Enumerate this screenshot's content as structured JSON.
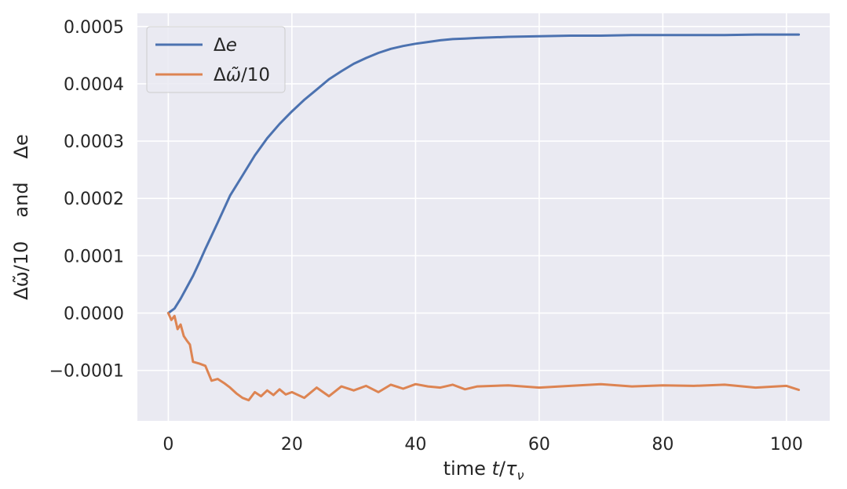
{
  "chart_data": {
    "type": "line",
    "title": "",
    "xlabel": "time t/τ_ν",
    "xlabel_parts": {
      "prefix": "time ",
      "t": "t",
      "slash": "/",
      "tau": "τ",
      "nu": "ν"
    },
    "ylabel": "Δω̃/10    and    Δe",
    "ylabel_parts": [
      "Δω̃/10",
      "and",
      "Δe"
    ],
    "xlim": [
      -5,
      107
    ],
    "ylim": [
      -0.000188,
      0.000523
    ],
    "x_ticks": [
      0,
      20,
      40,
      60,
      80,
      100
    ],
    "x_tick_labels": [
      "0",
      "20",
      "40",
      "60",
      "80",
      "100"
    ],
    "y_ticks": [
      -0.0001,
      0.0,
      0.0001,
      0.0002,
      0.0003,
      0.0004,
      0.0005
    ],
    "y_tick_labels": [
      "−0.0001",
      "0.0000",
      "0.0001",
      "0.0002",
      "0.0003",
      "0.0004",
      "0.0005"
    ],
    "grid": true,
    "legend_position": "top-left",
    "legend_entries": [
      {
        "label": "Δe",
        "label_parts": {
          "delta": "Δ",
          "var": "e"
        },
        "color": "#4c72b0"
      },
      {
        "label": "Δω̃/10",
        "label_parts": {
          "delta": "Δ",
          "var": "ω̃",
          "rest": "/10"
        },
        "color": "#dd8452"
      }
    ],
    "background_color": "#eaeaf2",
    "series": [
      {
        "name": "Δe",
        "color": "#4c72b0",
        "x": [
          0,
          1,
          2,
          3,
          4,
          5,
          6,
          7,
          8,
          10,
          12,
          14,
          16,
          18,
          20,
          22,
          24,
          26,
          28,
          30,
          32,
          34,
          36,
          38,
          40,
          42,
          44,
          46,
          48,
          50,
          55,
          60,
          65,
          70,
          75,
          80,
          85,
          90,
          95,
          100,
          102
        ],
        "y": [
          0.0,
          8e-06,
          2.5e-05,
          4.5e-05,
          6.5e-05,
          8.8e-05,
          0.000112,
          0.000135,
          0.000158,
          0.000205,
          0.00024,
          0.000275,
          0.000305,
          0.00033,
          0.000352,
          0.000372,
          0.00039,
          0.000408,
          0.000422,
          0.000435,
          0.000445,
          0.000454,
          0.000461,
          0.000466,
          0.00047,
          0.000473,
          0.000476,
          0.000478,
          0.000479,
          0.00048,
          0.000482,
          0.000483,
          0.000484,
          0.000484,
          0.000485,
          0.000485,
          0.000485,
          0.000485,
          0.000486,
          0.000486,
          0.000486
        ]
      },
      {
        "name": "Δω̃/10",
        "color": "#dd8452",
        "x": [
          0,
          0.5,
          1,
          1.5,
          2,
          2.5,
          3,
          3.5,
          4,
          5,
          6,
          7,
          8,
          9,
          10,
          11,
          12,
          13,
          14,
          15,
          16,
          17,
          18,
          19,
          20,
          22,
          24,
          26,
          28,
          30,
          32,
          34,
          36,
          38,
          40,
          42,
          44,
          46,
          48,
          50,
          55,
          60,
          65,
          70,
          75,
          80,
          85,
          90,
          95,
          100,
          102
        ],
        "y": [
          0.0,
          -1.2e-05,
          -5e-06,
          -2.8e-05,
          -2e-05,
          -4e-05,
          -4.8e-05,
          -5.5e-05,
          -8.5e-05,
          -8.8e-05,
          -9.2e-05,
          -0.000118,
          -0.000115,
          -0.000122,
          -0.00013,
          -0.00014,
          -0.000148,
          -0.000152,
          -0.000138,
          -0.000145,
          -0.000135,
          -0.000143,
          -0.000133,
          -0.000142,
          -0.000138,
          -0.000148,
          -0.00013,
          -0.000145,
          -0.000128,
          -0.000135,
          -0.000127,
          -0.000138,
          -0.000125,
          -0.000132,
          -0.000124,
          -0.000128,
          -0.00013,
          -0.000125,
          -0.000133,
          -0.000128,
          -0.000126,
          -0.00013,
          -0.000127,
          -0.000124,
          -0.000128,
          -0.000126,
          -0.000127,
          -0.000125,
          -0.00013,
          -0.000127,
          -0.000134
        ]
      }
    ]
  }
}
